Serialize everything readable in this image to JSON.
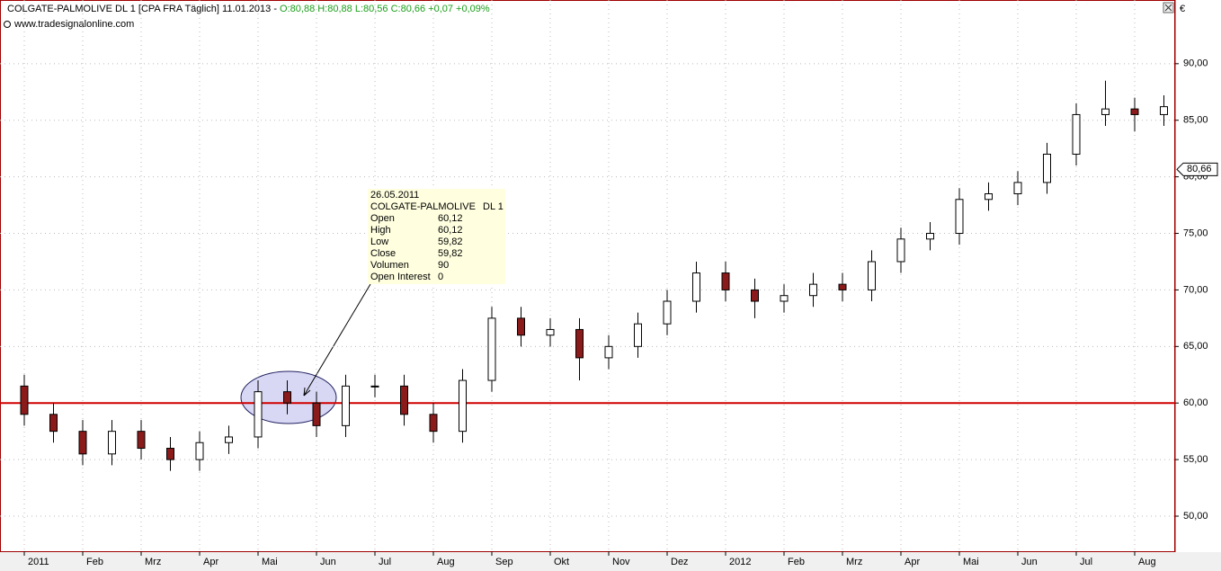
{
  "chart_data": {
    "type": "candlestick",
    "title": "COLGATE-PALMOLIVE   DL 1 [CPA FRA  Täglich] 11.01.2013 -",
    "subtitle": "O:80,88 H:80,88 L:80,56 C:80,66 +0,07 +0,09%",
    "source": "www.tradesignalonline.com",
    "currency": "€",
    "categories": [
      "2011",
      null,
      "Feb",
      null,
      "Mrz",
      null,
      "Apr",
      null,
      "Mai",
      null,
      "Jun",
      null,
      "Jul",
      null,
      "Aug",
      null,
      "Sep",
      null,
      "Okt",
      null,
      "Nov",
      null,
      "Dez",
      null,
      "2012",
      null,
      "Feb",
      null,
      "Mrz",
      null,
      "Apr",
      null,
      "Mai",
      null,
      "Jun",
      null,
      "Jul",
      null,
      "Aug",
      null
    ],
    "open": [
      61.5,
      59,
      57.5,
      55.5,
      57.5,
      56,
      55,
      56.5,
      57,
      61,
      60,
      58,
      61.5,
      61.5,
      59,
      57.5,
      62,
      67.5,
      66,
      66.5,
      64,
      65,
      67,
      69,
      71.5,
      70,
      69,
      69.5,
      70.5,
      70,
      72.5,
      74.5,
      75,
      78,
      78.5,
      79.5,
      82,
      85.5,
      86,
      85.5
    ],
    "high": [
      62.5,
      60,
      58.5,
      58.5,
      58.5,
      57,
      57.5,
      58,
      62,
      62,
      61,
      62.5,
      62.5,
      62.5,
      60,
      63,
      68.5,
      68.5,
      67.5,
      67.5,
      66,
      68,
      70,
      72.5,
      72.5,
      71,
      70.5,
      71.5,
      71.5,
      73.5,
      75.5,
      76,
      79,
      79.5,
      80.5,
      83,
      86.5,
      88.5,
      87,
      87.2
    ],
    "low": [
      58,
      56.5,
      54.5,
      54.5,
      55,
      54,
      54,
      55.5,
      56,
      59,
      57,
      57,
      60.5,
      58,
      56.5,
      56.5,
      61,
      65,
      65,
      62,
      63,
      64,
      66,
      68,
      69,
      67.5,
      68,
      68.5,
      69,
      69,
      71.5,
      73.5,
      74,
      77,
      77.5,
      78.5,
      81,
      84.5,
      84,
      84.5
    ],
    "close": [
      59,
      57.5,
      55.5,
      57.5,
      56,
      55,
      56.5,
      57,
      61,
      60,
      58,
      61.5,
      61.5,
      59,
      57.5,
      62,
      67.5,
      66,
      66.5,
      64,
      65,
      67,
      69,
      71.5,
      70,
      69,
      69.5,
      70.5,
      70,
      72.5,
      74.5,
      75,
      78,
      78.5,
      79.5,
      82,
      85.5,
      86,
      85.5,
      86.2
    ],
    "up_color": "#ffffff",
    "down_color": "#8b1a1a",
    "ylim": [
      46.9,
      94.2
    ],
    "yticks": [
      {
        "value": 50,
        "label": "50,00"
      },
      {
        "value": 55,
        "label": "55,00"
      },
      {
        "value": 60,
        "label": "60,00"
      },
      {
        "value": 65,
        "label": "65,00"
      },
      {
        "value": 70,
        "label": "70,00"
      },
      {
        "value": 75,
        "label": "75,00"
      },
      {
        "value": 80,
        "label": "80,00"
      },
      {
        "value": 85,
        "label": "85,00"
      },
      {
        "value": 90,
        "label": "90,00"
      }
    ],
    "grid": true,
    "last_price": {
      "value": 80.66,
      "label": "80,66"
    },
    "level_line": {
      "value": 60,
      "color": "#d00000"
    },
    "tooltip": {
      "date": "26.05.2011",
      "name": "COLGATE-PALMOLIVE",
      "contract": "DL 1",
      "rows": [
        [
          "Open",
          "60,12"
        ],
        [
          "High",
          "60,12"
        ],
        [
          "Low",
          "59,82"
        ],
        [
          "Close",
          "59,82"
        ],
        [
          "Volumen",
          "90"
        ],
        [
          "Open Interest",
          "0"
        ]
      ]
    }
  }
}
